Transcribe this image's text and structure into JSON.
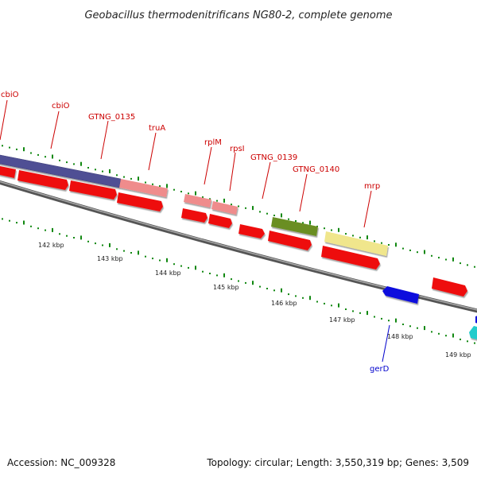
{
  "title": "Geobacillus thermodenitrificans NG80-2, complete genome",
  "footer": {
    "accession": "Accession: NC_009328",
    "topology": "Topology: circular; Length: 3,550,319 bp; Genes: 3,509"
  },
  "colors": {
    "forward_gene": "#ee1111",
    "label_red": "#cc0000",
    "label_blue": "#0000cc",
    "backbone": "#777777",
    "ticks": "#118811",
    "cbiO": "#4f4f94",
    "truA": "#ef8c8c",
    "GTNG_0139": "#6b8e23",
    "mrp": "#f0e68c",
    "gerD": "#1111dd",
    "cyan": "#22cccc"
  },
  "gene_labels": [
    {
      "name": "cbiO",
      "strand": "forward"
    },
    {
      "name": "cbiO",
      "strand": "forward"
    },
    {
      "name": "GTNG_0135",
      "strand": "forward"
    },
    {
      "name": "truA",
      "strand": "forward"
    },
    {
      "name": "rplM",
      "strand": "forward"
    },
    {
      "name": "rpsI",
      "strand": "forward"
    },
    {
      "name": "GTNG_0139",
      "strand": "forward"
    },
    {
      "name": "GTNG_0140",
      "strand": "forward"
    },
    {
      "name": "mrp",
      "strand": "forward"
    },
    {
      "name": "gerD",
      "strand": "reverse"
    }
  ],
  "scale_labels": [
    "142 kbp",
    "143 kbp",
    "144 kbp",
    "145 kbp",
    "146 kbp",
    "147 kbp",
    "148 kbp",
    "149 kbp"
  ]
}
